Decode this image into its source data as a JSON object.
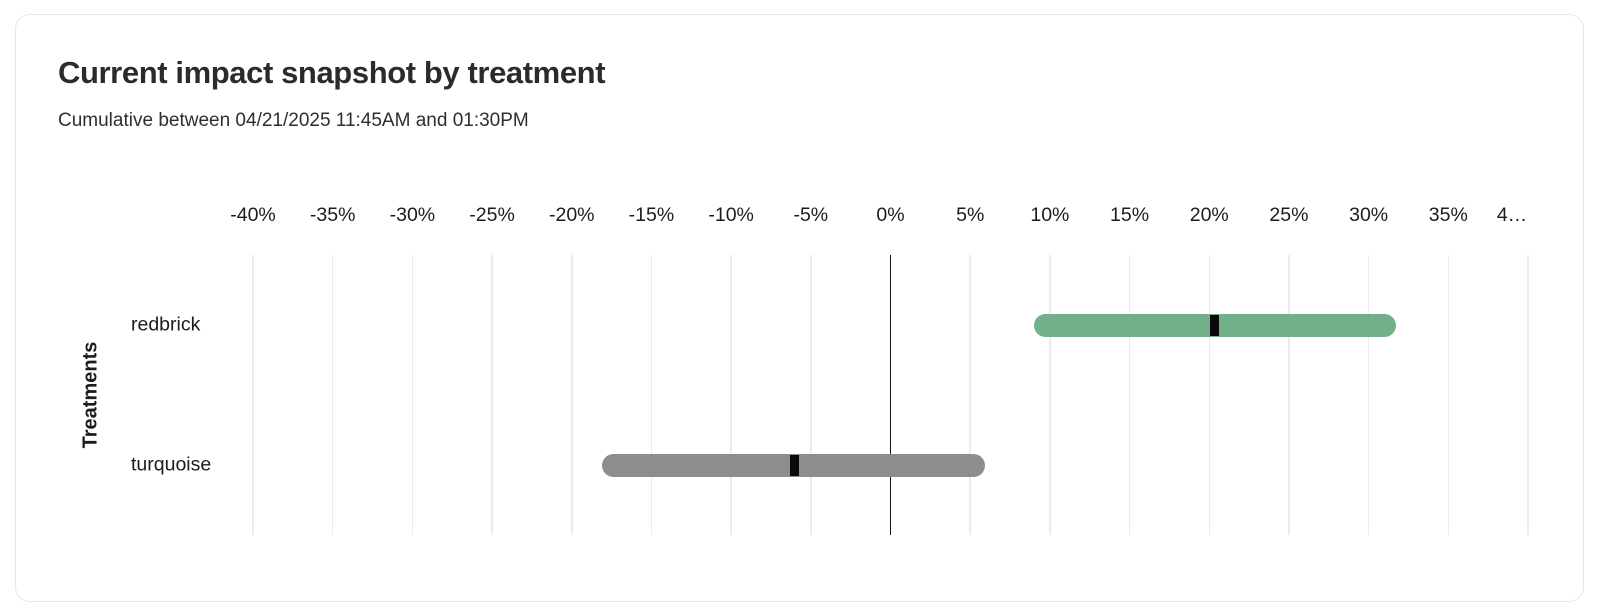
{
  "chart_data": {
    "type": "bar",
    "subtype": "horizontal_range_bars_with_point_markers",
    "title": "Current impact snapshot by treatment",
    "subtitle": "Cumulative between 04/21/2025 11:45AM and 01:30PM",
    "xlabel": "",
    "ylabel": "Treatments",
    "xlim": [
      -40,
      40
    ],
    "x_tick_values": [
      -40,
      -35,
      -30,
      -25,
      -20,
      -15,
      -10,
      -5,
      0,
      5,
      10,
      15,
      20,
      25,
      30,
      35,
      40
    ],
    "x_tick_labels": [
      "-40%",
      "-35%",
      "-30%",
      "-25%",
      "-20%",
      "-15%",
      "-10%",
      "-5%",
      "0%",
      "5%",
      "10%",
      "15%",
      "20%",
      "25%",
      "30%",
      "35%",
      "4…"
    ],
    "grid": true,
    "zero_line": true,
    "legend": false,
    "categories": [
      "redbrick",
      "turquoise"
    ],
    "series": [
      {
        "name": "redbrick",
        "low": 9.0,
        "point": 20.3,
        "high": 31.7,
        "bar_color": "#71b089"
      },
      {
        "name": "turquoise",
        "low": -18.1,
        "point": -6.0,
        "high": 5.9,
        "bar_color": "#8d8d8d"
      }
    ],
    "point_marker_color": "#0a0a0a"
  },
  "colors": {
    "background": "#ffffff",
    "card_border": "#e7e7e7",
    "grid_line": "#ececec",
    "zero_line": "#131313",
    "text": "#1c1c1c",
    "positive_bar": "#71b089",
    "neutral_bar": "#8d8d8d"
  }
}
